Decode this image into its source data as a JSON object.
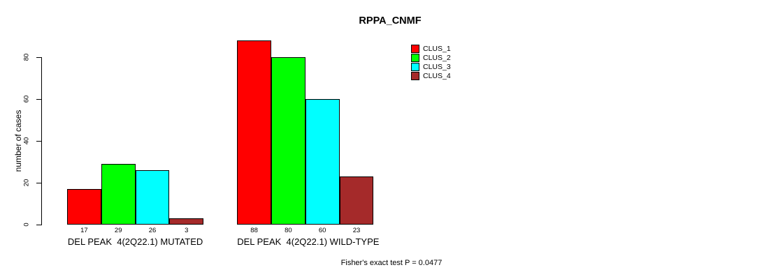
{
  "chart_data": {
    "type": "bar",
    "title": "RPPA_CNMF",
    "ylabel": "number of cases",
    "xlabel": "",
    "yticks": [
      0,
      20,
      40,
      60,
      80
    ],
    "ylim": [
      0,
      88
    ],
    "grid": false,
    "legend_position": "top-right",
    "series": [
      {
        "name": "CLUS_1",
        "color": "#ff0000"
      },
      {
        "name": "CLUS_2",
        "color": "#00ff00"
      },
      {
        "name": "CLUS_3",
        "color": "#00ffff"
      },
      {
        "name": "CLUS_4",
        "color": "#a52a2a"
      }
    ],
    "categories": [
      "DEL PEAK  4(2Q22.1) MUTATED",
      "DEL PEAK  4(2Q22.1) WILD-TYPE"
    ],
    "groups": [
      {
        "label": "DEL PEAK  4(2Q22.1) MUTATED",
        "values": [
          17,
          29,
          26,
          3
        ]
      },
      {
        "label": "DEL PEAK  4(2Q22.1) WILD-TYPE",
        "values": [
          88,
          80,
          60,
          23
        ]
      }
    ],
    "bar_value_labels": true,
    "annotation": "Fisher's exact test P = 0.0477"
  }
}
